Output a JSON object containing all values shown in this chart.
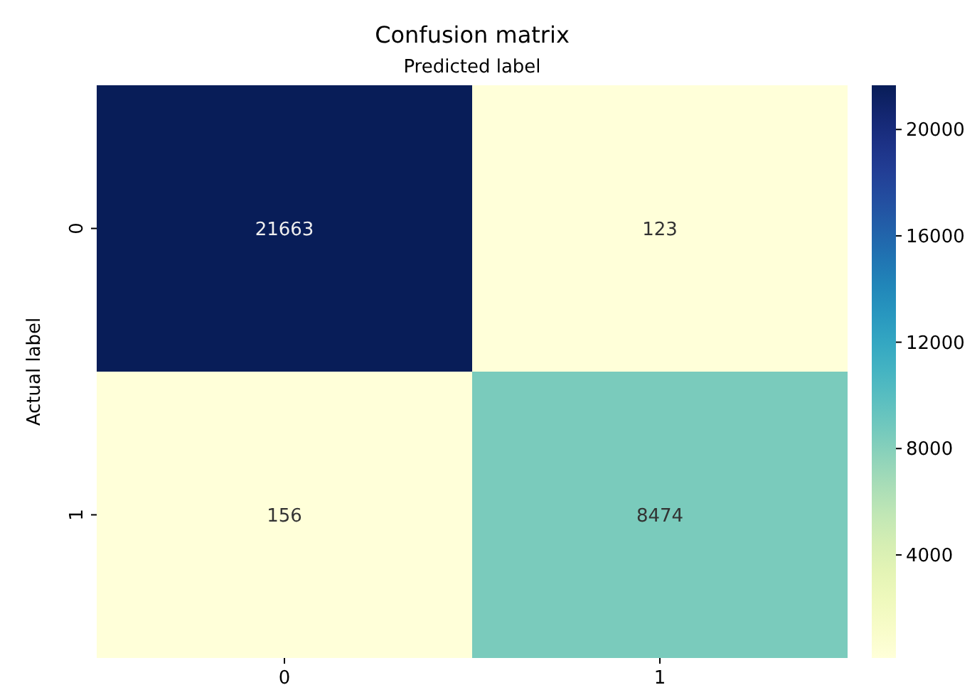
{
  "chart_data": {
    "type": "heatmap",
    "title": "Confusion matrix",
    "xlabel": "Predicted label",
    "ylabel": "Actual label",
    "categories": [
      "0",
      "1"
    ],
    "y_categories": [
      "0",
      "1"
    ],
    "cells": [
      [
        21663,
        123
      ],
      [
        156,
        8474
      ]
    ],
    "data_labels": true,
    "clim": [
      123,
      21663
    ],
    "cticks": [
      4000,
      8000,
      12000,
      16000,
      20000
    ]
  }
}
